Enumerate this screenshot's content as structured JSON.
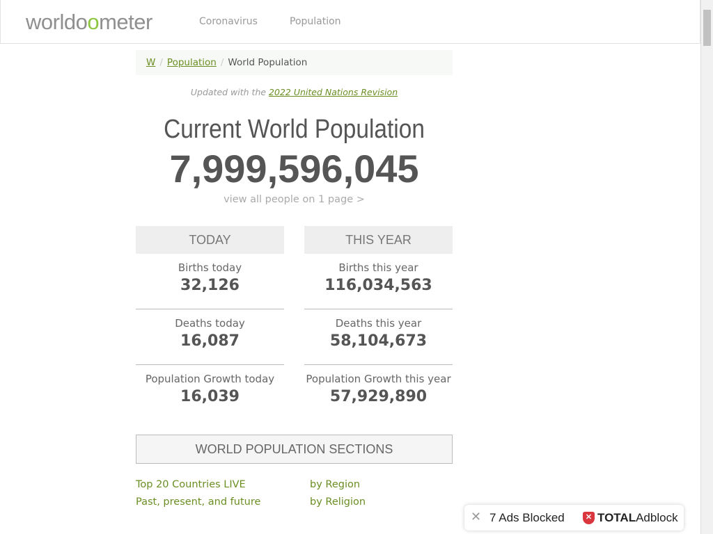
{
  "header": {
    "logo_pre": "worldo",
    "logo_o": "o",
    "logo_post": "meter",
    "nav": [
      "Coronavirus",
      "Population"
    ]
  },
  "breadcrumb": {
    "home": "W",
    "population": "Population",
    "current": "World Population"
  },
  "updated": {
    "prefix": "Updated with the ",
    "link": "2022 United Nations Revision"
  },
  "title": "Current World Population",
  "population": "7,999,596,045",
  "view_all": "view all people on 1 page >",
  "today": {
    "header": "TODAY",
    "stats": [
      {
        "label": "Births today",
        "value": "32,126"
      },
      {
        "label": "Deaths today",
        "value": "16,087"
      },
      {
        "label": "Population Growth today",
        "value": "16,039"
      }
    ]
  },
  "this_year": {
    "header": "THIS YEAR",
    "stats": [
      {
        "label": "Births this year",
        "value": "116,034,563"
      },
      {
        "label": "Deaths this year",
        "value": "58,104,673"
      },
      {
        "label": "Population Growth this year",
        "value": "57,929,890"
      }
    ]
  },
  "sections": {
    "header": "WORLD POPULATION SECTIONS",
    "links": [
      "Top 20 Countries LIVE",
      "Past, present, and future",
      "by Region",
      "by Religion"
    ]
  },
  "adblock": {
    "count_text": "7 Ads Blocked",
    "brand_bold": "TOTAL",
    "brand": "Adblock"
  }
}
